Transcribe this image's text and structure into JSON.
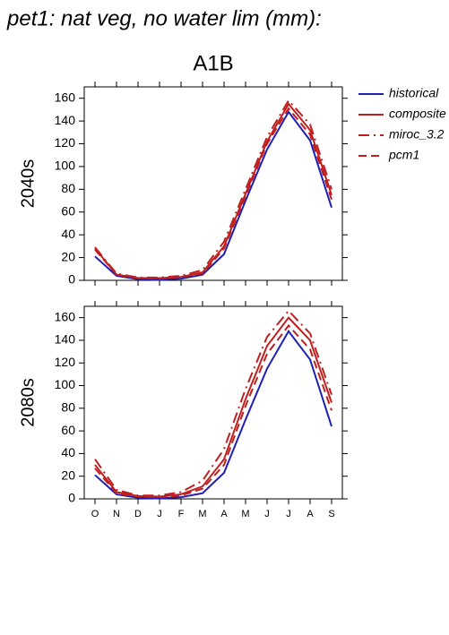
{
  "title": "pet1: nat veg, no water lim (mm):",
  "chart_data": [
    {
      "type": "line",
      "subtitle": "A1B",
      "ylabel": "2040s",
      "ylim": [
        0,
        170
      ],
      "yticks": [
        0,
        20,
        40,
        60,
        80,
        100,
        120,
        140,
        160
      ],
      "series": [
        {
          "name": "historical",
          "color": "#1f1fb4",
          "dash": "solid",
          "values": [
            21,
            4,
            1,
            0.5,
            1.5,
            5,
            23,
            70,
            115,
            148,
            123,
            64
          ]
        },
        {
          "name": "composite",
          "color": "#c01f1f",
          "dash": "solid",
          "values": [
            28,
            5,
            2,
            2,
            3,
            7,
            30,
            76,
            122,
            155,
            132,
            75
          ]
        },
        {
          "name": "miroc_3.2",
          "color": "#c01f1f",
          "dash": "dashdot",
          "values": [
            29,
            6,
            2.5,
            2.5,
            4,
            9,
            34,
            80,
            126,
            158,
            137,
            80
          ]
        },
        {
          "name": "pcm1",
          "color": "#c01f1f",
          "dash": "dashed",
          "values": [
            27,
            5,
            2,
            1.5,
            3,
            6,
            28,
            74,
            120,
            151,
            128,
            71
          ]
        }
      ]
    },
    {
      "type": "line",
      "ylabel": "2080s",
      "categories": [
        "O",
        "N",
        "D",
        "J",
        "F",
        "M",
        "A",
        "M",
        "J",
        "J",
        "A",
        "S"
      ],
      "ylim": [
        0,
        170
      ],
      "yticks": [
        0,
        20,
        40,
        60,
        80,
        100,
        120,
        140,
        160
      ],
      "series": [
        {
          "color": "#1f1fb4",
          "dash": "solid",
          "values": [
            21,
            4,
            1,
            0.5,
            1.5,
            5,
            23,
            70,
            115,
            148,
            123,
            64
          ]
        },
        {
          "color": "#c01f1f",
          "dash": "solid",
          "values": [
            30,
            6,
            2.5,
            2,
            4,
            11,
            35,
            88,
            135,
            160,
            140,
            85
          ]
        },
        {
          "color": "#c01f1f",
          "dash": "dashdot",
          "values": [
            35,
            8,
            3,
            3,
            6,
            16,
            44,
            97,
            143,
            166,
            146,
            92
          ]
        },
        {
          "color": "#c01f1f",
          "dash": "dashed",
          "values": [
            27,
            5,
            2,
            1.5,
            3,
            9,
            30,
            82,
            128,
            153,
            132,
            78
          ]
        }
      ]
    }
  ]
}
